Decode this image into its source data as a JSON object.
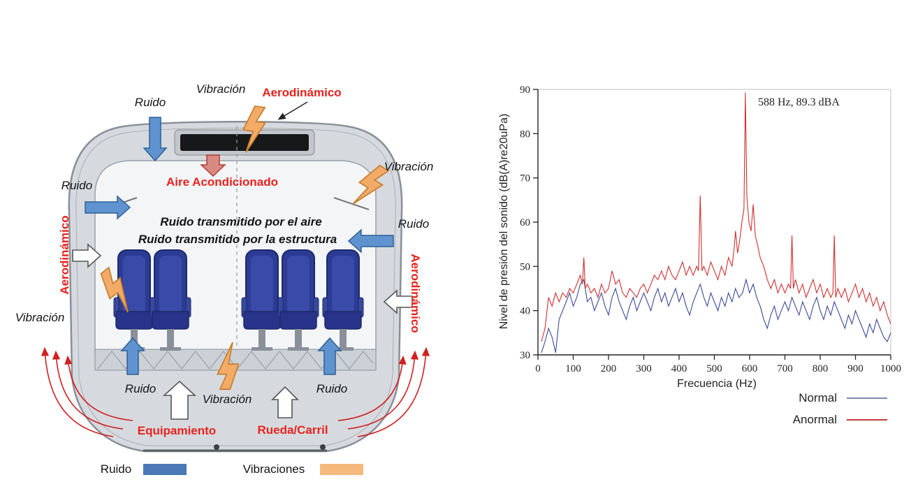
{
  "diagram": {
    "labels": {
      "ruido_top": "Ruido",
      "vibracion_top": "Vibración",
      "aerodinamico_top": "Aerodinámico",
      "aire_acondicionado": "Aire Acondicionado",
      "vibracion_upper_right": "Vibración",
      "ruido_upper_left": "Ruido",
      "ruido_mid_right": "Ruido",
      "aerodinamico_left": "Aerodinámico",
      "aerodinamico_right": "Aerodinámico",
      "vibracion_mid_left": "Vibración",
      "airborne_noise": "Ruido transmitido por el aire",
      "structure_noise": "Ruido transmitido por la estructura",
      "ruido_bottom_left": "Ruido",
      "vibracion_bottom": "Vibración",
      "ruido_bottom_right": "Ruido",
      "equipamiento": "Equipamiento",
      "rueda_carril": "Rueda/Carril"
    },
    "legend": {
      "ruido_label": "Ruido",
      "ruido_color": "#4a79b5",
      "vibraciones_label": "Vibraciones",
      "vibraciones_color": "#f5b97c"
    }
  },
  "chart_data": {
    "type": "line",
    "title": "",
    "xlabel": "Frecuencia (Hz)",
    "ylabel": "Nivel de presión del sonido (dB(A)re20uPa)",
    "xlim": [
      0,
      1000
    ],
    "ylim": [
      30,
      90
    ],
    "xticks": [
      0,
      100,
      200,
      300,
      400,
      500,
      600,
      700,
      800,
      900,
      1000
    ],
    "yticks": [
      30,
      40,
      50,
      60,
      70,
      80,
      90
    ],
    "grid": false,
    "annotation": "588 Hz, 89.3 dBA",
    "legend_position": "bottom-right",
    "legend": [
      {
        "label": "Normal",
        "color": "#7d8ba6"
      },
      {
        "label": "Anormal",
        "color": "#c53a3a"
      }
    ],
    "series": [
      {
        "name": "Normal",
        "color": "#3a4a96",
        "points": [
          [
            10,
            30.5
          ],
          [
            20,
            33
          ],
          [
            30,
            36
          ],
          [
            40,
            34
          ],
          [
            50,
            30.5
          ],
          [
            60,
            38
          ],
          [
            70,
            40
          ],
          [
            80,
            42
          ],
          [
            90,
            44
          ],
          [
            100,
            41
          ],
          [
            110,
            43
          ],
          [
            120,
            46
          ],
          [
            130,
            47
          ],
          [
            140,
            42
          ],
          [
            150,
            43
          ],
          [
            160,
            40
          ],
          [
            170,
            42
          ],
          [
            180,
            44
          ],
          [
            190,
            41
          ],
          [
            200,
            39
          ],
          [
            210,
            43
          ],
          [
            220,
            45
          ],
          [
            230,
            42
          ],
          [
            240,
            40
          ],
          [
            250,
            38
          ],
          [
            260,
            41
          ],
          [
            270,
            43
          ],
          [
            280,
            40
          ],
          [
            290,
            42
          ],
          [
            300,
            44
          ],
          [
            310,
            42
          ],
          [
            320,
            40
          ],
          [
            330,
            43
          ],
          [
            340,
            45
          ],
          [
            350,
            42
          ],
          [
            360,
            44
          ],
          [
            370,
            41
          ],
          [
            380,
            43
          ],
          [
            390,
            45
          ],
          [
            400,
            42
          ],
          [
            410,
            44
          ],
          [
            420,
            41
          ],
          [
            430,
            39
          ],
          [
            440,
            42
          ],
          [
            450,
            44
          ],
          [
            460,
            46
          ],
          [
            470,
            43
          ],
          [
            480,
            41
          ],
          [
            490,
            44
          ],
          [
            500,
            42
          ],
          [
            510,
            40
          ],
          [
            520,
            43
          ],
          [
            530,
            41
          ],
          [
            540,
            44
          ],
          [
            550,
            42
          ],
          [
            560,
            45
          ],
          [
            570,
            43
          ],
          [
            580,
            44
          ],
          [
            590,
            47
          ],
          [
            600,
            44
          ],
          [
            610,
            46
          ],
          [
            620,
            43
          ],
          [
            630,
            41
          ],
          [
            640,
            38
          ],
          [
            650,
            36
          ],
          [
            660,
            39
          ],
          [
            670,
            41
          ],
          [
            680,
            38
          ],
          [
            690,
            40
          ],
          [
            700,
            42
          ],
          [
            710,
            40
          ],
          [
            720,
            43
          ],
          [
            730,
            41
          ],
          [
            740,
            39
          ],
          [
            750,
            42
          ],
          [
            760,
            40
          ],
          [
            770,
            38
          ],
          [
            780,
            41
          ],
          [
            790,
            43
          ],
          [
            800,
            40
          ],
          [
            810,
            38
          ],
          [
            820,
            41
          ],
          [
            830,
            39
          ],
          [
            840,
            42
          ],
          [
            850,
            40
          ],
          [
            860,
            38
          ],
          [
            870,
            36
          ],
          [
            880,
            39
          ],
          [
            890,
            37
          ],
          [
            900,
            40
          ],
          [
            910,
            38
          ],
          [
            920,
            36
          ],
          [
            930,
            34
          ],
          [
            940,
            37
          ],
          [
            950,
            35
          ],
          [
            960,
            38
          ],
          [
            970,
            36
          ],
          [
            980,
            34
          ],
          [
            990,
            33
          ],
          [
            1000,
            35
          ]
        ]
      },
      {
        "name": "Anormal",
        "color": "#d02f2f",
        "points": [
          [
            10,
            33
          ],
          [
            20,
            36
          ],
          [
            30,
            43
          ],
          [
            40,
            41
          ],
          [
            50,
            44
          ],
          [
            60,
            42
          ],
          [
            70,
            44
          ],
          [
            80,
            43
          ],
          [
            90,
            45
          ],
          [
            100,
            44
          ],
          [
            110,
            46
          ],
          [
            120,
            48
          ],
          [
            126,
            46
          ],
          [
            130,
            52
          ],
          [
            134,
            45
          ],
          [
            140,
            46
          ],
          [
            150,
            44
          ],
          [
            160,
            45
          ],
          [
            170,
            43
          ],
          [
            180,
            46
          ],
          [
            190,
            44
          ],
          [
            200,
            45
          ],
          [
            210,
            49
          ],
          [
            220,
            46
          ],
          [
            230,
            47
          ],
          [
            240,
            44
          ],
          [
            250,
            43
          ],
          [
            260,
            45
          ],
          [
            270,
            44
          ],
          [
            280,
            43
          ],
          [
            290,
            45
          ],
          [
            300,
            46
          ],
          [
            310,
            44
          ],
          [
            320,
            46
          ],
          [
            330,
            48
          ],
          [
            340,
            47
          ],
          [
            350,
            49
          ],
          [
            360,
            47
          ],
          [
            370,
            50
          ],
          [
            380,
            48
          ],
          [
            390,
            47
          ],
          [
            400,
            49
          ],
          [
            410,
            51
          ],
          [
            420,
            48
          ],
          [
            430,
            50
          ],
          [
            440,
            48
          ],
          [
            450,
            50
          ],
          [
            455,
            49
          ],
          [
            460,
            66
          ],
          [
            465,
            49
          ],
          [
            470,
            50
          ],
          [
            480,
            48
          ],
          [
            490,
            51
          ],
          [
            500,
            49
          ],
          [
            510,
            47
          ],
          [
            520,
            50
          ],
          [
            530,
            48
          ],
          [
            540,
            52
          ],
          [
            550,
            50
          ],
          [
            556,
            54
          ],
          [
            560,
            58
          ],
          [
            566,
            53
          ],
          [
            572,
            56
          ],
          [
            578,
            60
          ],
          [
            584,
            63
          ],
          [
            588,
            89.3
          ],
          [
            592,
            66
          ],
          [
            598,
            60
          ],
          [
            604,
            58
          ],
          [
            610,
            64
          ],
          [
            616,
            57
          ],
          [
            622,
            55
          ],
          [
            630,
            52
          ],
          [
            640,
            50
          ],
          [
            650,
            47
          ],
          [
            660,
            45
          ],
          [
            670,
            47
          ],
          [
            680,
            44
          ],
          [
            690,
            46
          ],
          [
            700,
            44
          ],
          [
            710,
            46
          ],
          [
            716,
            45
          ],
          [
            720,
            57
          ],
          [
            724,
            45
          ],
          [
            730,
            47
          ],
          [
            740,
            44
          ],
          [
            750,
            46
          ],
          [
            760,
            43
          ],
          [
            770,
            45
          ],
          [
            780,
            47
          ],
          [
            790,
            44
          ],
          [
            800,
            46
          ],
          [
            810,
            43
          ],
          [
            820,
            45
          ],
          [
            830,
            43
          ],
          [
            836,
            44
          ],
          [
            840,
            57
          ],
          [
            844,
            43
          ],
          [
            850,
            45
          ],
          [
            860,
            43
          ],
          [
            870,
            45
          ],
          [
            880,
            42
          ],
          [
            890,
            44
          ],
          [
            900,
            46
          ],
          [
            910,
            43
          ],
          [
            920,
            45
          ],
          [
            930,
            42
          ],
          [
            940,
            44
          ],
          [
            950,
            41
          ],
          [
            960,
            43
          ],
          [
            970,
            40
          ],
          [
            980,
            42
          ],
          [
            990,
            39
          ],
          [
            1000,
            37
          ]
        ]
      }
    ]
  }
}
